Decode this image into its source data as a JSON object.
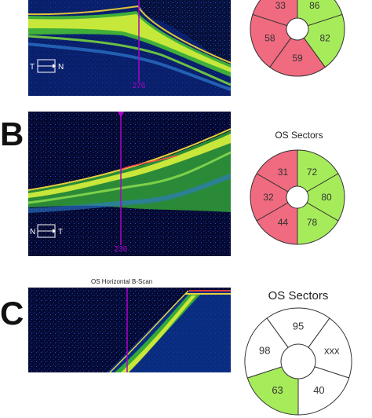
{
  "colors": {
    "abnormal": "#f06a80",
    "normal": "#a6ec5a",
    "neutral": "#ffffff",
    "outline": "#333333",
    "cursor": "#b000c8"
  },
  "panelA": {
    "cursor_value": "276",
    "orientation": {
      "left": "T",
      "right": "N"
    },
    "sectors": {
      "top_left": {
        "value": "33",
        "status": "abnormal"
      },
      "top_right": {
        "value": "86",
        "status": "normal"
      },
      "left": {
        "value": "58",
        "status": "abnormal"
      },
      "right": {
        "value": "82",
        "status": "normal"
      },
      "bottom": {
        "value": "59",
        "status": "abnormal"
      }
    }
  },
  "panelB": {
    "letter": "B",
    "sectors_title": "OS Sectors",
    "cursor_value": "236",
    "orientation": {
      "left": "N",
      "right": "T"
    },
    "sectors": {
      "top_left": {
        "value": "31",
        "status": "abnormal"
      },
      "top": {
        "value": "72",
        "status": "normal"
      },
      "top_right": {
        "value": "80",
        "status": "normal"
      },
      "left": {
        "value": "32",
        "status": "abnormal"
      },
      "right": {
        "value": "78",
        "status": "normal"
      },
      "bottom": {
        "value": "44",
        "status": "abnormal"
      }
    }
  },
  "panelC": {
    "letter": "C",
    "scan_title": "OS Horizontal B-Scan",
    "sectors_title": "OS Sectors",
    "sectors": {
      "top": {
        "value": "95",
        "status": "neutral"
      },
      "left": {
        "value": "98",
        "status": "neutral"
      },
      "right": {
        "value": "xxx",
        "status": "neutral"
      },
      "bottom_left": {
        "value": "63",
        "status": "normal"
      },
      "bottom_right": {
        "value": "40",
        "status": "neutral"
      }
    }
  }
}
